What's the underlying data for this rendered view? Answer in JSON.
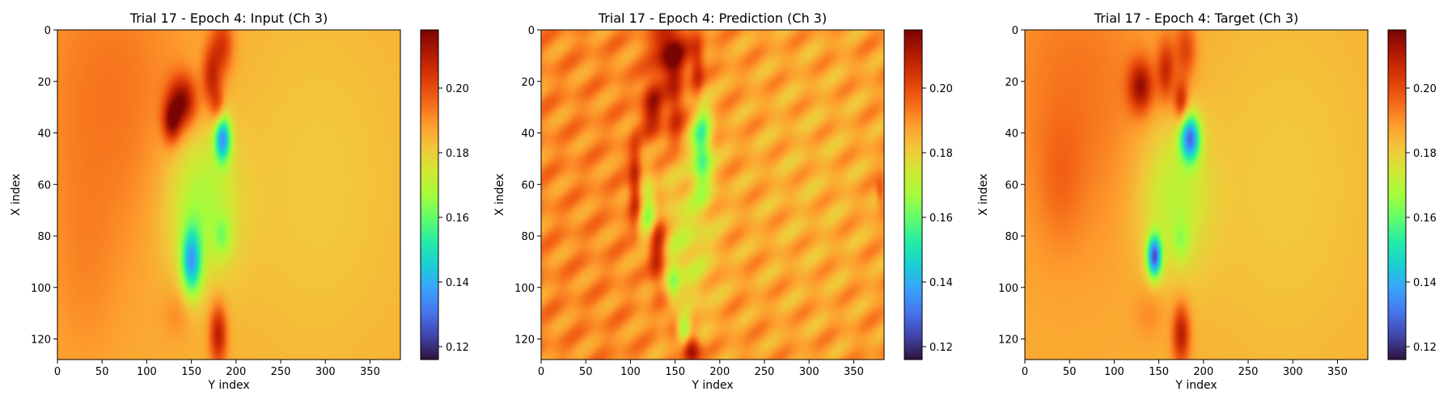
{
  "figure": {
    "background": "#ffffff"
  },
  "colormap": {
    "name": "turbo",
    "stops": [
      "#30123b",
      "#4145ab",
      "#4675ed",
      "#39a2fc",
      "#1bcfd4",
      "#24eca6",
      "#61fc6c",
      "#a4fc3b",
      "#d1e834",
      "#f3c63a",
      "#fe9b2d",
      "#f36315",
      "#d93806",
      "#b11901",
      "#7a0402"
    ]
  },
  "chart_data": [
    {
      "type": "heatmap",
      "title": "Trial 17 - Epoch 4: Input (Ch 3)",
      "xlabel": "Y index",
      "ylabel": "X index",
      "x_ticks": [
        0,
        50,
        100,
        150,
        200,
        250,
        300,
        350
      ],
      "y_ticks": [
        0,
        20,
        40,
        60,
        80,
        100,
        120
      ],
      "xlim": [
        0,
        384
      ],
      "ylim": [
        128,
        0
      ],
      "colorbar": {
        "ticks": [
          "0.12",
          "0.14",
          "0.16",
          "0.18",
          "0.20"
        ],
        "range": [
          0.116,
          0.218
        ]
      },
      "field": {
        "background": 0.186,
        "features": [
          {
            "cx": 60,
            "cy": 25,
            "rx": 90,
            "ry": 60,
            "amp": 0.008
          },
          {
            "cx": 290,
            "cy": 60,
            "rx": 120,
            "ry": 80,
            "amp": -0.005
          },
          {
            "cx": 30,
            "cy": 95,
            "rx": 40,
            "ry": 40,
            "amp": 0.004
          },
          {
            "cx": 185,
            "cy": 6,
            "rx": 12,
            "ry": 12,
            "amp": 0.018
          },
          {
            "cx": 140,
            "cy": 28,
            "rx": 16,
            "ry": 10,
            "amp": 0.03
          },
          {
            "cx": 128,
            "cy": 36,
            "rx": 10,
            "ry": 8,
            "amp": 0.025
          },
          {
            "cx": 172,
            "cy": 18,
            "rx": 10,
            "ry": 12,
            "amp": 0.02
          },
          {
            "cx": 180,
            "cy": 30,
            "rx": 8,
            "ry": 8,
            "amp": 0.015
          },
          {
            "cx": 185,
            "cy": 42,
            "rx": 9,
            "ry": 9,
            "amp": -0.045
          },
          {
            "cx": 160,
            "cy": 68,
            "rx": 40,
            "ry": 30,
            "amp": -0.018
          },
          {
            "cx": 150,
            "cy": 90,
            "rx": 11,
            "ry": 13,
            "amp": -0.04
          },
          {
            "cx": 185,
            "cy": 80,
            "rx": 10,
            "ry": 8,
            "amp": -0.012
          },
          {
            "cx": 180,
            "cy": 118,
            "rx": 10,
            "ry": 12,
            "amp": 0.025
          },
          {
            "cx": 135,
            "cy": 110,
            "rx": 18,
            "ry": 10,
            "amp": 0.006
          }
        ]
      }
    },
    {
      "type": "heatmap",
      "title": "Trial 17 - Epoch 4: Prediction (Ch 3)",
      "xlabel": "Y index",
      "ylabel": "X index",
      "x_ticks": [
        0,
        50,
        100,
        150,
        200,
        250,
        300,
        350
      ],
      "y_ticks": [
        0,
        20,
        40,
        60,
        80,
        100,
        120
      ],
      "xlim": [
        0,
        384
      ],
      "ylim": [
        128,
        0
      ],
      "colorbar": {
        "ticks": [
          "0.12",
          "0.14",
          "0.16",
          "0.18",
          "0.20"
        ],
        "range": [
          0.116,
          0.218
        ]
      },
      "field": {
        "background": 0.191,
        "ripple": 0.006,
        "features": [
          {
            "cx": 300,
            "cy": 60,
            "rx": 120,
            "ry": 80,
            "amp": -0.006
          },
          {
            "cx": 145,
            "cy": 8,
            "rx": 18,
            "ry": 10,
            "amp": 0.03
          },
          {
            "cx": 125,
            "cy": 30,
            "rx": 12,
            "ry": 12,
            "amp": 0.022
          },
          {
            "cx": 150,
            "cy": 30,
            "rx": 10,
            "ry": 16,
            "amp": 0.018
          },
          {
            "cx": 175,
            "cy": 15,
            "rx": 8,
            "ry": 12,
            "amp": 0.02
          },
          {
            "cx": 105,
            "cy": 60,
            "rx": 7,
            "ry": 16,
            "amp": 0.02
          },
          {
            "cx": 130,
            "cy": 85,
            "rx": 10,
            "ry": 16,
            "amp": 0.026
          },
          {
            "cx": 150,
            "cy": 110,
            "rx": 12,
            "ry": 10,
            "amp": 0.015
          },
          {
            "cx": 168,
            "cy": 124,
            "rx": 10,
            "ry": 6,
            "amp": 0.03
          },
          {
            "cx": 180,
            "cy": 45,
            "rx": 11,
            "ry": 18,
            "amp": -0.032
          },
          {
            "cx": 120,
            "cy": 70,
            "rx": 10,
            "ry": 12,
            "amp": -0.025
          },
          {
            "cx": 160,
            "cy": 85,
            "rx": 35,
            "ry": 35,
            "amp": -0.014
          },
          {
            "cx": 148,
            "cy": 100,
            "rx": 8,
            "ry": 8,
            "amp": -0.022
          },
          {
            "cx": 160,
            "cy": 116,
            "rx": 8,
            "ry": 6,
            "amp": -0.03
          },
          {
            "cx": 380,
            "cy": 63,
            "rx": 5,
            "ry": 5,
            "amp": 0.015
          }
        ]
      }
    },
    {
      "type": "heatmap",
      "title": "Trial 17 - Epoch 4: Target (Ch 3)",
      "xlabel": "Y index",
      "ylabel": "X index",
      "x_ticks": [
        0,
        50,
        100,
        150,
        200,
        250,
        300,
        350
      ],
      "y_ticks": [
        0,
        20,
        40,
        60,
        80,
        100,
        120
      ],
      "xlim": [
        0,
        384
      ],
      "ylim": [
        128,
        0
      ],
      "colorbar": {
        "ticks": [
          "0.12",
          "0.14",
          "0.16",
          "0.18",
          "0.20"
        ],
        "range": [
          0.116,
          0.218
        ]
      },
      "field": {
        "background": 0.186,
        "features": [
          {
            "cx": 60,
            "cy": 25,
            "rx": 90,
            "ry": 60,
            "amp": 0.008
          },
          {
            "cx": 290,
            "cy": 60,
            "rx": 120,
            "ry": 80,
            "amp": -0.005
          },
          {
            "cx": 40,
            "cy": 60,
            "rx": 25,
            "ry": 25,
            "amp": 0.005
          },
          {
            "cx": 180,
            "cy": 8,
            "rx": 12,
            "ry": 12,
            "amp": 0.016
          },
          {
            "cx": 130,
            "cy": 22,
            "rx": 14,
            "ry": 10,
            "amp": 0.026
          },
          {
            "cx": 158,
            "cy": 16,
            "rx": 10,
            "ry": 12,
            "amp": 0.02
          },
          {
            "cx": 175,
            "cy": 28,
            "rx": 8,
            "ry": 8,
            "amp": 0.022
          },
          {
            "cx": 185,
            "cy": 42,
            "rx": 11,
            "ry": 9,
            "amp": -0.05
          },
          {
            "cx": 165,
            "cy": 65,
            "rx": 40,
            "ry": 30,
            "amp": -0.015
          },
          {
            "cx": 145,
            "cy": 88,
            "rx": 8,
            "ry": 8,
            "amp": -0.055
          },
          {
            "cx": 175,
            "cy": 82,
            "rx": 10,
            "ry": 8,
            "amp": -0.01
          },
          {
            "cx": 175,
            "cy": 118,
            "rx": 10,
            "ry": 12,
            "amp": 0.025
          },
          {
            "cx": 140,
            "cy": 110,
            "rx": 18,
            "ry": 10,
            "amp": 0.006
          }
        ]
      }
    }
  ]
}
